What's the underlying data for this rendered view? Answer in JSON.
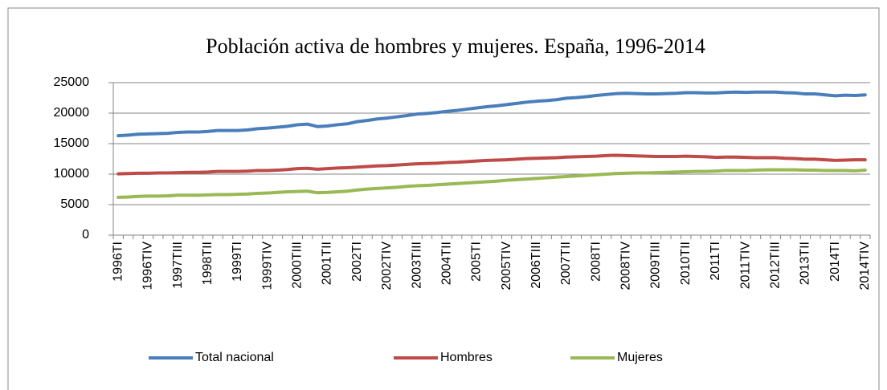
{
  "chart_data": {
    "type": "line",
    "title": "Población activa de hombres y mujeres. España, 1996-2014",
    "categories": [
      "1996TI",
      null,
      null,
      "1996TIV",
      null,
      null,
      "1997TIII",
      null,
      null,
      "1998TII",
      null,
      null,
      "1999TI",
      null,
      null,
      "1999TIV",
      null,
      null,
      "2000TIII",
      null,
      null,
      "2001TII",
      null,
      null,
      "2002TI",
      null,
      null,
      "2002TIV",
      null,
      null,
      "2003TIII",
      null,
      null,
      "2004TII",
      null,
      null,
      "2005TI",
      null,
      null,
      "2005TIV",
      null,
      null,
      "2006TIII",
      null,
      null,
      "2007TII",
      null,
      null,
      "2008TI",
      null,
      null,
      "2008TIV",
      null,
      null,
      "2009TIII",
      null,
      null,
      "2010TII",
      null,
      null,
      "2011TI",
      null,
      null,
      "2011TIV",
      null,
      null,
      "2012TIII",
      null,
      null,
      "2013TII",
      null,
      null,
      "2014TI",
      null,
      null,
      "2014TIV"
    ],
    "series": [
      {
        "name": "Total nacional",
        "color": "#4a7ebb",
        "values": [
          16300,
          16400,
          16550,
          16600,
          16650,
          16700,
          16850,
          16900,
          16900,
          17000,
          17150,
          17150,
          17150,
          17250,
          17450,
          17550,
          17700,
          17850,
          18100,
          18200,
          17800,
          17900,
          18100,
          18250,
          18600,
          18800,
          19050,
          19200,
          19400,
          19600,
          19850,
          19950,
          20100,
          20300,
          20450,
          20650,
          20850,
          21050,
          21200,
          21400,
          21600,
          21800,
          21950,
          22050,
          22200,
          22450,
          22550,
          22700,
          22900,
          23050,
          23200,
          23250,
          23200,
          23150,
          23150,
          23200,
          23250,
          23350,
          23350,
          23300,
          23300,
          23400,
          23450,
          23400,
          23450,
          23450,
          23450,
          23350,
          23300,
          23150,
          23150,
          23000,
          22850,
          22950,
          22900,
          23000
        ]
      },
      {
        "name": "Hombres",
        "color": "#be4b48",
        "values": [
          10050,
          10100,
          10150,
          10150,
          10200,
          10200,
          10250,
          10300,
          10300,
          10350,
          10450,
          10450,
          10450,
          10500,
          10600,
          10600,
          10650,
          10750,
          10900,
          10950,
          10800,
          10900,
          11000,
          11050,
          11150,
          11250,
          11350,
          11400,
          11500,
          11600,
          11700,
          11750,
          11800,
          11900,
          11950,
          12050,
          12150,
          12250,
          12300,
          12350,
          12450,
          12550,
          12600,
          12650,
          12700,
          12800,
          12850,
          12900,
          12950,
          13050,
          13100,
          13050,
          13000,
          12950,
          12900,
          12900,
          12900,
          12950,
          12900,
          12850,
          12750,
          12800,
          12800,
          12750,
          12700,
          12700,
          12700,
          12600,
          12550,
          12450,
          12450,
          12350,
          12250,
          12300,
          12350,
          12350
        ]
      },
      {
        "name": "Mujeres",
        "color": "#98b954",
        "values": [
          6200,
          6250,
          6350,
          6400,
          6400,
          6450,
          6550,
          6550,
          6550,
          6600,
          6650,
          6650,
          6700,
          6750,
          6850,
          6900,
          7000,
          7100,
          7150,
          7200,
          6950,
          7000,
          7100,
          7200,
          7400,
          7550,
          7650,
          7750,
          7850,
          8000,
          8100,
          8150,
          8250,
          8350,
          8450,
          8550,
          8650,
          8750,
          8850,
          9000,
          9100,
          9200,
          9300,
          9400,
          9500,
          9600,
          9700,
          9800,
          9900,
          10000,
          10100,
          10150,
          10200,
          10200,
          10250,
          10300,
          10350,
          10400,
          10450,
          10450,
          10500,
          10600,
          10600,
          10600,
          10650,
          10700,
          10700,
          10700,
          10700,
          10650,
          10650,
          10600,
          10600,
          10600,
          10550,
          10650
        ]
      }
    ],
    "ylim": [
      0,
      25000
    ],
    "yticks": [
      0,
      5000,
      10000,
      15000,
      20000,
      25000
    ],
    "grid": true,
    "legend": "bottom"
  }
}
